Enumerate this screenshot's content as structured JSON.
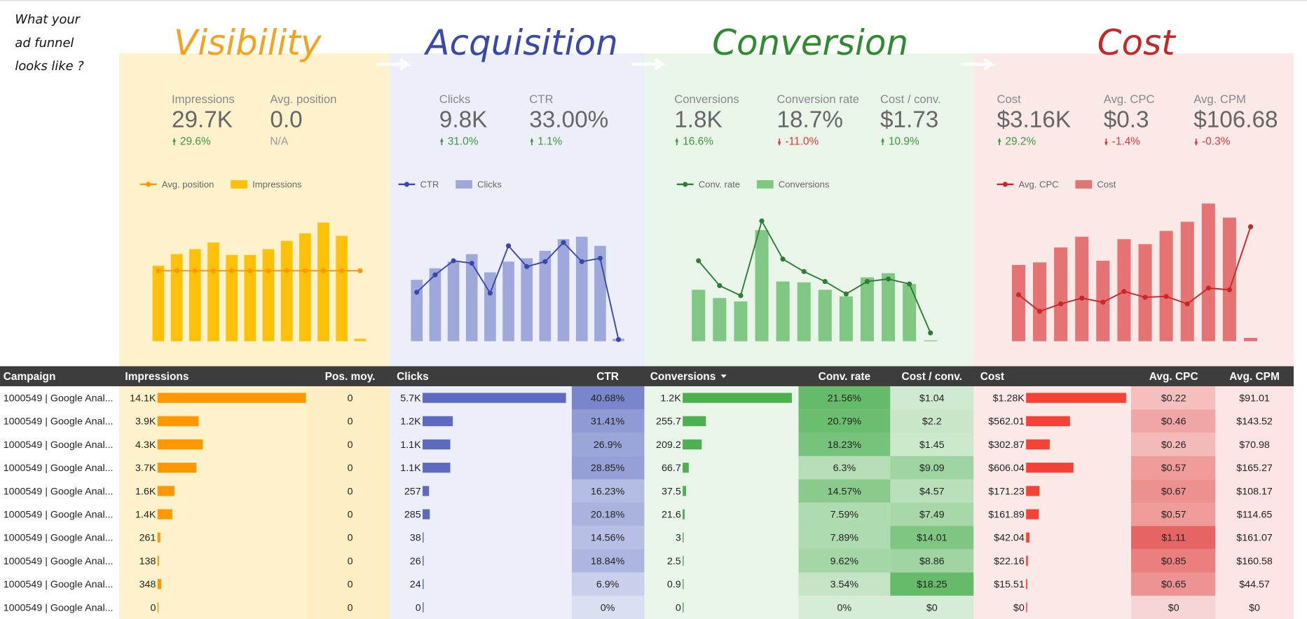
{
  "note": [
    "What your",
    "ad funnel",
    "looks like ?"
  ],
  "sections": [
    {
      "title": "Visibility",
      "metrics": [
        {
          "label": "Impressions",
          "value": "29.7K",
          "delta": {
            "value": 29.6,
            "label": "29.6%"
          }
        },
        {
          "label": "Avg. position",
          "value": "0.0",
          "delta": "N/A"
        }
      ]
    },
    {
      "title": "Acquisition",
      "metrics": [
        {
          "label": "Clicks",
          "value": "9.8K",
          "delta": {
            "value": 31.0,
            "label": "31.0%"
          }
        },
        {
          "label": "CTR",
          "value": "33.00%",
          "delta": {
            "value": 1.1,
            "label": "1.1%"
          }
        }
      ]
    },
    {
      "title": "Conversion",
      "metrics": [
        {
          "label": "Conversions",
          "value": "1.8K",
          "delta": {
            "value": 16.6,
            "label": "16.6%"
          }
        },
        {
          "label": "Conversion rate",
          "value": "18.7%",
          "delta": {
            "value": -11.0,
            "label": "-11.0%"
          }
        },
        {
          "label": "Cost / conv.",
          "value": "$1.73",
          "delta": {
            "value": 10.9,
            "label": "10.9%"
          }
        }
      ]
    },
    {
      "title": "Cost",
      "metrics": [
        {
          "label": "Cost",
          "value": "$3.16K",
          "delta": {
            "value": 29.2,
            "label": "29.2%"
          }
        },
        {
          "label": "Avg. CPC",
          "value": "$0.3",
          "delta": {
            "value": -1.4,
            "label": "-1.4%"
          }
        },
        {
          "label": "Avg. CPM",
          "value": "$106.68",
          "delta": {
            "value": -0.3,
            "label": "-0.3%"
          }
        }
      ]
    }
  ],
  "chart_data": [
    {
      "type": "combo",
      "categories": [
        null,
        null,
        null,
        null,
        null,
        null,
        null,
        null,
        null,
        null,
        null,
        null
      ],
      "ylim": [
        0,
        170
      ],
      "y2lim": [
        -1,
        1
      ],
      "series": [
        {
          "name": "Avg. position",
          "type": "line",
          "axis": "y2",
          "color": "#ff9800",
          "values": [
            0,
            0,
            0,
            0,
            0,
            0,
            0,
            0,
            0,
            0,
            0,
            0
          ]
        },
        {
          "name": "Impressions",
          "type": "bar",
          "color": "#ffc107",
          "values": [
            91,
            105,
            111,
            119,
            104,
            104,
            111,
            121,
            130,
            143,
            127,
            3
          ]
        }
      ]
    },
    {
      "type": "combo",
      "categories": [
        null,
        null,
        null,
        null,
        null,
        null,
        null,
        null,
        null,
        null,
        null,
        null
      ],
      "ylim": [
        0,
        170
      ],
      "y2lim": [
        0,
        170
      ],
      "series": [
        {
          "name": "CTR",
          "type": "line",
          "axis": "y2",
          "color": "#3949ab",
          "values": [
            59,
            80,
            97,
            94,
            58,
            115,
            90,
            96,
            119,
            96,
            100,
            2
          ]
        },
        {
          "name": "Clicks",
          "type": "bar",
          "color": "#9fa8da",
          "values": [
            74,
            88,
            96,
            105,
            83,
            96,
            100,
            109,
            123,
            126,
            115,
            3
          ]
        }
      ]
    },
    {
      "type": "combo",
      "categories": [
        null,
        null,
        null,
        null,
        null,
        null,
        null,
        null,
        null,
        null,
        null,
        null
      ],
      "ylim": [
        0,
        170
      ],
      "y2lim": [
        0,
        170
      ],
      "series": [
        {
          "name": "Conv. rate",
          "type": "line",
          "axis": "y2",
          "color": "#2e7d32",
          "values": [
            97,
            67,
            55,
            145,
            99,
            84,
            72,
            57,
            72,
            75,
            69,
            10
          ]
        },
        {
          "name": "Conversions",
          "type": "bar",
          "color": "#81c784",
          "values": [
            62,
            52,
            48,
            134,
            72,
            71,
            62,
            54,
            77,
            82,
            69,
            1
          ]
        }
      ]
    },
    {
      "type": "combo",
      "categories": [
        null,
        null,
        null,
        null,
        null,
        null,
        null,
        null,
        null,
        null,
        null,
        null
      ],
      "ylim": [
        0,
        170
      ],
      "y2lim": [
        0,
        170
      ],
      "series": [
        {
          "name": "Avg. CPC",
          "type": "line",
          "axis": "y2",
          "color": "#c62828",
          "values": [
            56,
            36,
            45,
            52,
            47,
            60,
            53,
            54,
            45,
            64,
            62,
            138
          ]
        },
        {
          "name": "Cost",
          "type": "bar",
          "color": "#e57373",
          "values": [
            92,
            95,
            113,
            126,
            97,
            123,
            117,
            133,
            144,
            166,
            149,
            4
          ]
        }
      ]
    }
  ],
  "table": {
    "columns": [
      "Campaign",
      "Impressions",
      "Pos. moy.",
      "Clicks",
      "CTR",
      "Conversions",
      "Conv. rate",
      "Cost / conv.",
      "Cost",
      "Avg. CPC",
      "Avg. CPM"
    ],
    "rows": [
      [
        "1000549 | Google Anal...",
        {
          "value": 14100,
          "label": "14.1K"
        },
        0,
        {
          "value": 5700,
          "label": "5.7K"
        },
        {
          "value": 40.68,
          "label": "40.68%"
        },
        {
          "value": 1200,
          "label": "1.2K"
        },
        {
          "value": 21.56,
          "label": "21.56%"
        },
        {
          "value": 1.04,
          "label": "$1.04"
        },
        {
          "value": 1280,
          "label": "$1.28K"
        },
        {
          "value": 0.22,
          "label": "$0.22"
        },
        {
          "value": 91.01,
          "label": "$91.01"
        }
      ],
      [
        "1000549 | Google Anal...",
        {
          "value": 3900,
          "label": "3.9K"
        },
        0,
        {
          "value": 1200,
          "label": "1.2K"
        },
        {
          "value": 31.41,
          "label": "31.41%"
        },
        255.7,
        {
          "value": 20.79,
          "label": "20.79%"
        },
        {
          "value": 2.2,
          "label": "$2.2"
        },
        {
          "value": 562.01,
          "label": "$562.01"
        },
        {
          "value": 0.46,
          "label": "$0.46"
        },
        {
          "value": 143.52,
          "label": "$143.52"
        }
      ],
      [
        "1000549 | Google Anal...",
        {
          "value": 4300,
          "label": "4.3K"
        },
        0,
        {
          "value": 1100,
          "label": "1.1K"
        },
        {
          "value": 26.9,
          "label": "26.9%"
        },
        209.2,
        {
          "value": 18.23,
          "label": "18.23%"
        },
        {
          "value": 1.45,
          "label": "$1.45"
        },
        {
          "value": 302.87,
          "label": "$302.87"
        },
        {
          "value": 0.26,
          "label": "$0.26"
        },
        {
          "value": 70.98,
          "label": "$70.98"
        }
      ],
      [
        "1000549 | Google Anal...",
        {
          "value": 3700,
          "label": "3.7K"
        },
        0,
        {
          "value": 1100,
          "label": "1.1K"
        },
        {
          "value": 28.85,
          "label": "28.85%"
        },
        66.7,
        {
          "value": 6.3,
          "label": "6.3%"
        },
        {
          "value": 9.09,
          "label": "$9.09"
        },
        {
          "value": 606.04,
          "label": "$606.04"
        },
        {
          "value": 0.57,
          "label": "$0.57"
        },
        {
          "value": 165.27,
          "label": "$165.27"
        }
      ],
      [
        "1000549 | Google Anal...",
        {
          "value": 1600,
          "label": "1.6K"
        },
        0,
        257,
        {
          "value": 16.23,
          "label": "16.23%"
        },
        37.5,
        {
          "value": 14.57,
          "label": "14.57%"
        },
        {
          "value": 4.57,
          "label": "$4.57"
        },
        {
          "value": 171.23,
          "label": "$171.23"
        },
        {
          "value": 0.67,
          "label": "$0.67"
        },
        {
          "value": 108.17,
          "label": "$108.17"
        }
      ],
      [
        "1000549 | Google Anal...",
        {
          "value": 1400,
          "label": "1.4K"
        },
        0,
        285,
        {
          "value": 20.18,
          "label": "20.18%"
        },
        21.6,
        {
          "value": 7.59,
          "label": "7.59%"
        },
        {
          "value": 7.49,
          "label": "$7.49"
        },
        {
          "value": 161.89,
          "label": "$161.89"
        },
        {
          "value": 0.57,
          "label": "$0.57"
        },
        {
          "value": 114.65,
          "label": "$114.65"
        }
      ],
      [
        "1000549 | Google Anal...",
        261,
        0,
        38,
        {
          "value": 14.56,
          "label": "14.56%"
        },
        3,
        {
          "value": 7.89,
          "label": "7.89%"
        },
        {
          "value": 14.01,
          "label": "$14.01"
        },
        {
          "value": 42.04,
          "label": "$42.04"
        },
        {
          "value": 1.11,
          "label": "$1.11"
        },
        {
          "value": 161.07,
          "label": "$161.07"
        }
      ],
      [
        "1000549 | Google Anal...",
        138,
        0,
        26,
        {
          "value": 18.84,
          "label": "18.84%"
        },
        2.5,
        {
          "value": 9.62,
          "label": "9.62%"
        },
        {
          "value": 8.86,
          "label": "$8.86"
        },
        {
          "value": 22.16,
          "label": "$22.16"
        },
        {
          "value": 0.85,
          "label": "$0.85"
        },
        {
          "value": 160.58,
          "label": "$160.58"
        }
      ],
      [
        "1000549 | Google Anal...",
        348,
        0,
        24,
        {
          "value": 6.9,
          "label": "6.9%"
        },
        0.9,
        {
          "value": 3.54,
          "label": "3.54%"
        },
        {
          "value": 18.25,
          "label": "$18.25"
        },
        {
          "value": 15.51,
          "label": "$15.51"
        },
        {
          "value": 0.65,
          "label": "$0.65"
        },
        {
          "value": 44.57,
          "label": "$44.57"
        }
      ],
      [
        "1000549 | Google Anal...",
        0,
        0,
        0,
        {
          "value": 0,
          "label": "0%"
        },
        0,
        {
          "value": 0,
          "label": "0%"
        },
        {
          "value": 0,
          "label": "$0"
        },
        {
          "value": 0,
          "label": "$0"
        },
        {
          "value": 0,
          "label": "$0"
        },
        {
          "value": 0,
          "label": "$0"
        }
      ]
    ]
  }
}
